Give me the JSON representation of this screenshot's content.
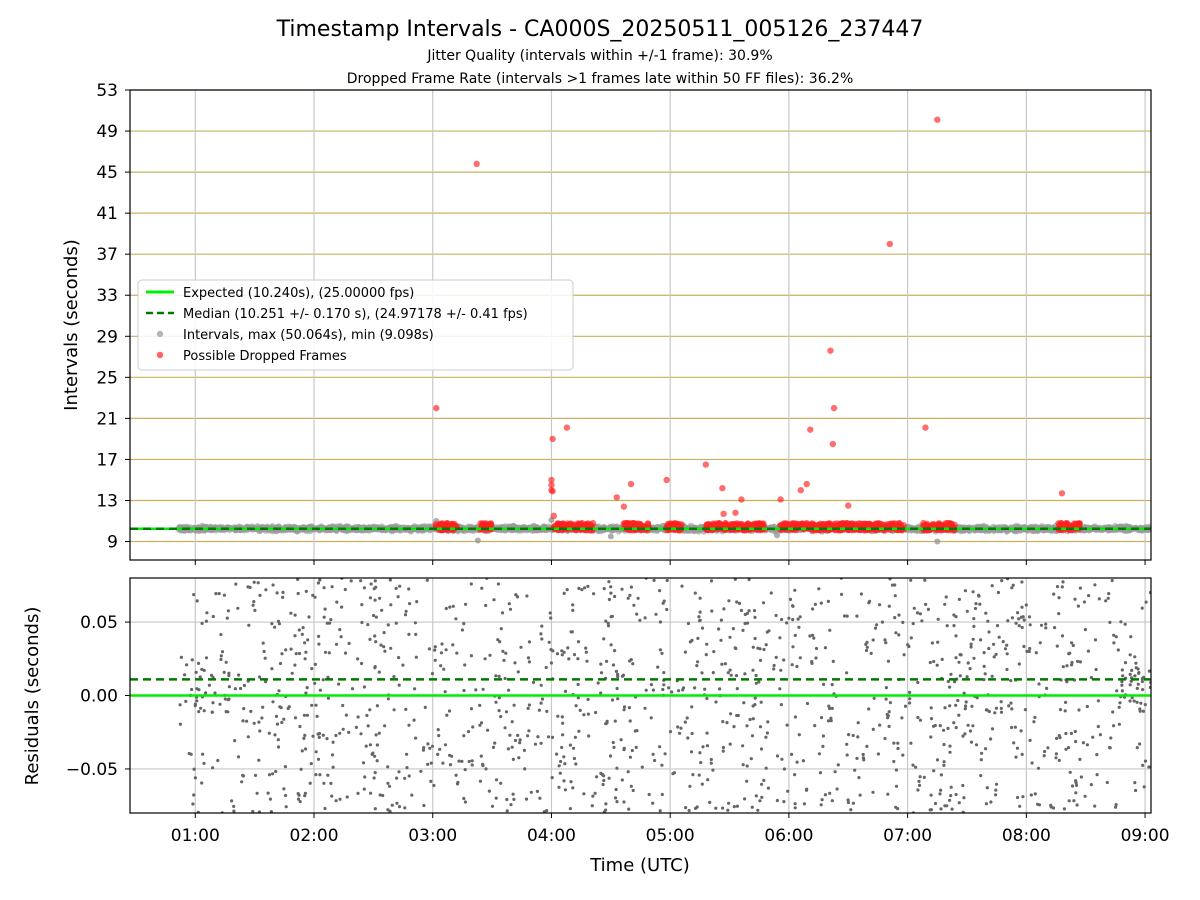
{
  "figure": {
    "title": "Timestamp Intervals - CA000S_20250511_005126_237447",
    "subtitle_1": "Jitter Quality (intervals within +/-1 frame): 30.9%",
    "subtitle_2": "Dropped Frame Rate (intervals >1 frames late within 50 FF files): 36.2%"
  },
  "colors": {
    "expected": "#00ee00",
    "median": "#007a00",
    "intervals": "#999999",
    "dropped": "#ff2020",
    "residuals": "#666666",
    "hgrid_top": "#c8b060",
    "grid": "#c8c8c8"
  },
  "chart_data": [
    {
      "type": "scatter",
      "panel": "intervals",
      "ylabel": "Intervals (seconds)",
      "xlabel": "",
      "xlim_hours": [
        0.45,
        9.05
      ],
      "ylim": [
        7.2,
        53
      ],
      "yticks": [
        9,
        13,
        17,
        21,
        25,
        29,
        33,
        37,
        41,
        45,
        49,
        53
      ],
      "xticks": [
        1,
        2,
        3,
        4,
        5,
        6,
        7,
        8,
        9
      ],
      "xtick_labels": [
        "01:00",
        "02:00",
        "03:00",
        "04:00",
        "05:00",
        "06:00",
        "07:00",
        "08:00",
        "09:00"
      ],
      "grid": true,
      "legend_position": "center-left",
      "legend": [
        "Expected (10.240s), (25.00000 fps)",
        "Median (10.251 +/- 0.170 s), (24.97178 +/- 0.41 fps)",
        "Intervals, max (50.064s), min (9.098s)",
        "Possible Dropped Frames"
      ],
      "expected_value": 10.24,
      "median_value": 10.251,
      "interval_time_range_hours": [
        0.86,
        9.05
      ],
      "interval_band": [
        9.9,
        10.6
      ],
      "interval_outliers": [
        {
          "x": 3.03,
          "y": 11.0
        },
        {
          "x": 3.38,
          "y": 9.1
        },
        {
          "x": 4.0,
          "y": 11.1
        },
        {
          "x": 7.25,
          "y": 9.0
        },
        {
          "x": 4.5,
          "y": 9.5
        },
        {
          "x": 5.9,
          "y": 9.6
        }
      ],
      "dropped_clusters_hours": [
        [
          3.02,
          3.2
        ],
        [
          3.4,
          3.5
        ],
        [
          4.02,
          4.35
        ],
        [
          4.6,
          4.82
        ],
        [
          4.97,
          5.1
        ],
        [
          5.3,
          5.8
        ],
        [
          5.93,
          6.97
        ],
        [
          7.13,
          7.4
        ],
        [
          8.27,
          8.45
        ]
      ],
      "dropped_points": [
        {
          "x": 3.03,
          "y": 22.0
        },
        {
          "x": 3.37,
          "y": 45.8
        },
        {
          "x": 4.01,
          "y": 19.0
        },
        {
          "x": 4.0,
          "y": 15.0
        },
        {
          "x": 4.0,
          "y": 14.5
        },
        {
          "x": 4.0,
          "y": 14.0
        },
        {
          "x": 4.01,
          "y": 13.9
        },
        {
          "x": 4.02,
          "y": 11.5
        },
        {
          "x": 4.13,
          "y": 20.1
        },
        {
          "x": 4.55,
          "y": 13.3
        },
        {
          "x": 4.61,
          "y": 12.4
        },
        {
          "x": 4.67,
          "y": 14.6
        },
        {
          "x": 4.97,
          "y": 15.0
        },
        {
          "x": 5.3,
          "y": 16.5
        },
        {
          "x": 5.44,
          "y": 14.2
        },
        {
          "x": 5.45,
          "y": 11.7
        },
        {
          "x": 5.55,
          "y": 11.8
        },
        {
          "x": 5.6,
          "y": 13.1
        },
        {
          "x": 5.93,
          "y": 13.1
        },
        {
          "x": 6.1,
          "y": 14.0
        },
        {
          "x": 6.15,
          "y": 14.6
        },
        {
          "x": 6.18,
          "y": 19.9
        },
        {
          "x": 6.35,
          "y": 27.6
        },
        {
          "x": 6.38,
          "y": 22.0
        },
        {
          "x": 6.37,
          "y": 18.5
        },
        {
          "x": 6.5,
          "y": 12.5
        },
        {
          "x": 6.85,
          "y": 38.0
        },
        {
          "x": 7.15,
          "y": 20.1
        },
        {
          "x": 7.25,
          "y": 50.1
        },
        {
          "x": 8.3,
          "y": 13.7
        }
      ]
    },
    {
      "type": "scatter",
      "panel": "residuals",
      "ylabel": "Residuals (seconds)",
      "xlabel": "Time (UTC)",
      "xlim_hours": [
        0.45,
        9.05
      ],
      "ylim": [
        -0.08,
        0.08
      ],
      "yticks": [
        -0.05,
        0.0,
        0.05
      ],
      "ytick_labels": [
        "−0.05",
        "0.00",
        "0.05"
      ],
      "xticks": [
        1,
        2,
        3,
        4,
        5,
        6,
        7,
        8,
        9
      ],
      "xtick_labels": [
        "01:00",
        "02:00",
        "03:00",
        "04:00",
        "05:00",
        "06:00",
        "07:00",
        "08:00",
        "09:00"
      ],
      "grid": true,
      "expected_residual": 0.0,
      "median_residual": 0.011,
      "residual_time_range_hours": [
        0.86,
        9.05
      ],
      "residual_range": [
        -0.08,
        0.08
      ]
    }
  ]
}
